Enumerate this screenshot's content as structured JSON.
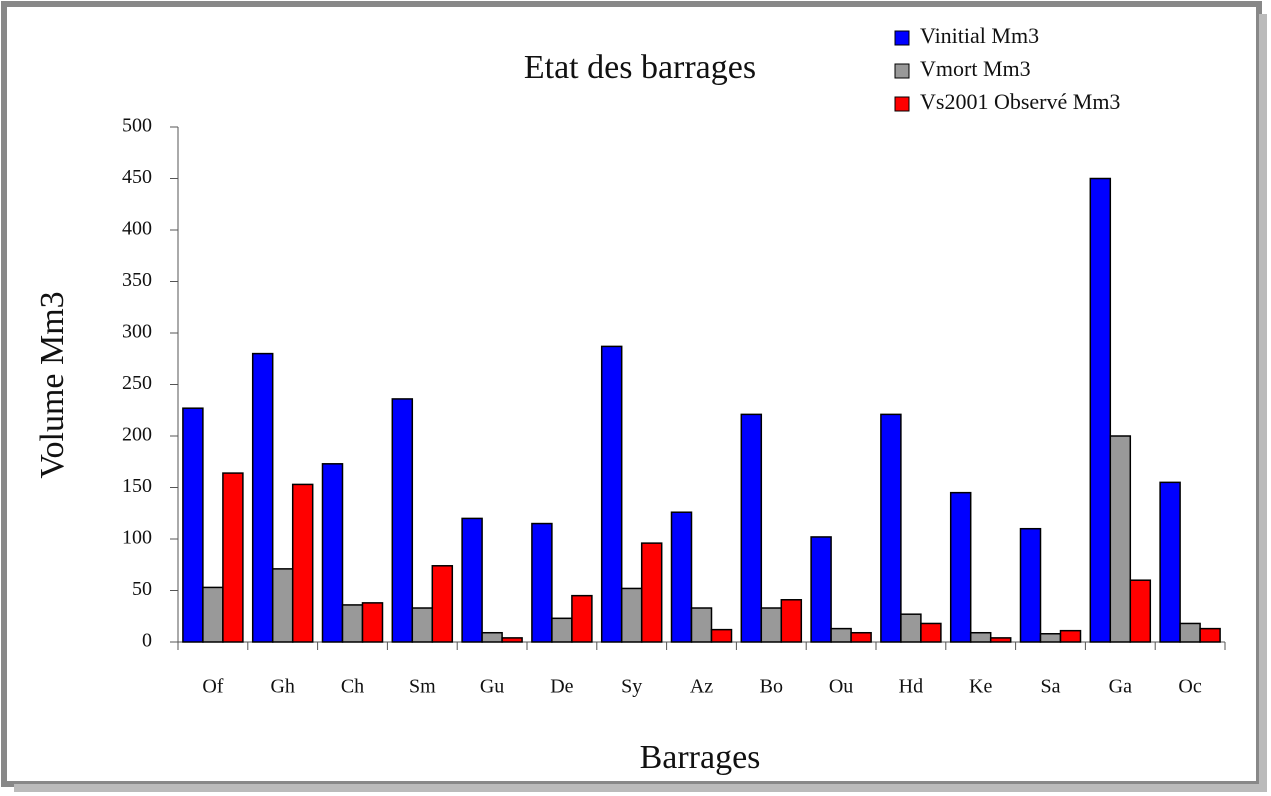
{
  "chart_data": {
    "type": "bar",
    "title": "Etat des barrages",
    "x_label": "Barrages",
    "y_label": "Volume Mm3",
    "categories": [
      "Of",
      "Gh",
      "Ch",
      "Sm",
      "Gu",
      "De",
      "Sy",
      "Az",
      "Bo",
      "Ou",
      "Hd",
      "Ke",
      "Sa",
      "Ga",
      "Oc"
    ],
    "series": [
      {
        "name": "Vinitial Mm3",
        "color": "#0000ff",
        "values": [
          227,
          280,
          173,
          236,
          120,
          115,
          287,
          126,
          221,
          102,
          221,
          145,
          110,
          450,
          155
        ]
      },
      {
        "name": "Vmort Mm3",
        "color": "#999999",
        "values": [
          53,
          71,
          36,
          33,
          9,
          23,
          52,
          33,
          33,
          13,
          27,
          9,
          8,
          200,
          18
        ]
      },
      {
        "name": "Vs2001 Observé Mm3",
        "color": "#ff0000",
        "values": [
          164,
          153,
          38,
          74,
          4,
          45,
          96,
          12,
          41,
          9,
          18,
          4,
          11,
          60,
          13
        ]
      }
    ],
    "ylim": [
      0,
      500
    ],
    "yticks": [
      0,
      50,
      100,
      150,
      200,
      250,
      300,
      350,
      400,
      450,
      500
    ],
    "grid": false,
    "legend": "top-right"
  }
}
